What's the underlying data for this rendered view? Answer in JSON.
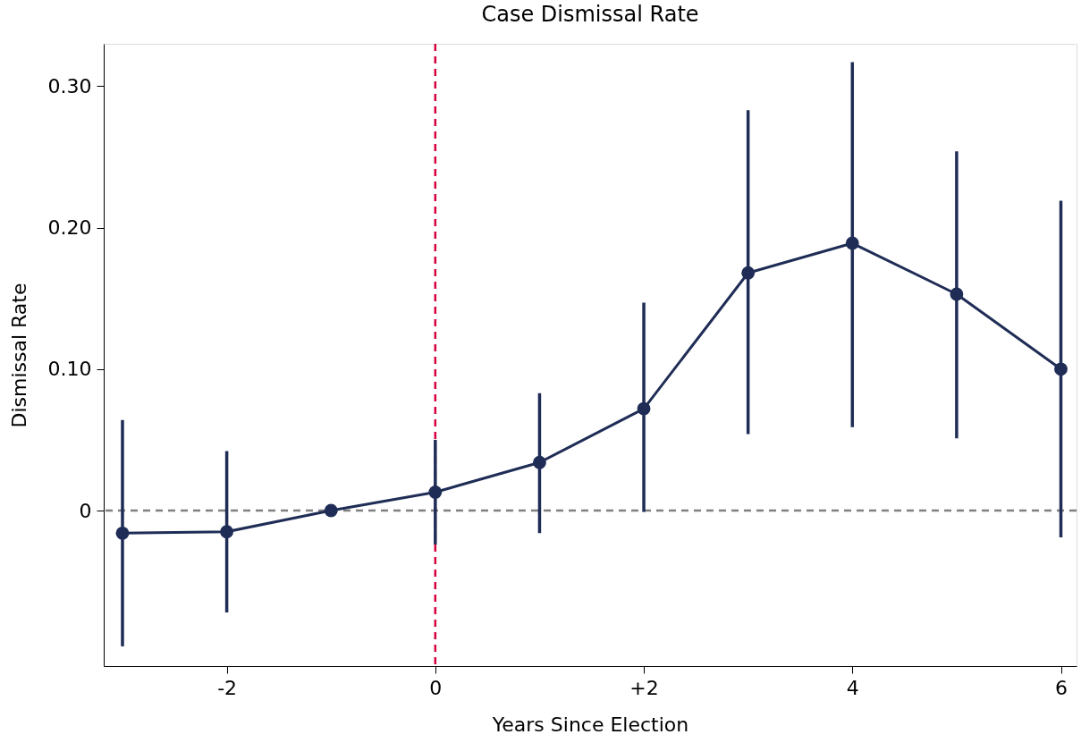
{
  "chart_data": {
    "type": "line",
    "title": "Case Dismissal Rate",
    "xlabel": "Years Since Election",
    "ylabel": "Dismissal Rate",
    "x": [
      -3,
      -2,
      -1,
      0,
      1,
      2,
      3,
      4,
      5,
      6
    ],
    "series": [
      {
        "color": "#1f2d56",
        "values": [
          -0.016,
          -0.015,
          0,
          0.013,
          0.034,
          0.072,
          0.168,
          0.189,
          0.153,
          0.1
        ],
        "errors": [
          [
            -0.096,
            0.064
          ],
          [
            -0.072,
            0.042
          ],
          null,
          [
            -0.024,
            0.05
          ],
          [
            -0.016,
            0.083
          ],
          [
            -0.001,
            0.147
          ],
          [
            0.054,
            0.283
          ],
          [
            0.059,
            0.317
          ],
          [
            0.051,
            0.254
          ],
          [
            -0.019,
            0.219
          ]
        ]
      }
    ],
    "marker": "circle",
    "line_style": "solid",
    "xlim": [
      -3.18,
      6.15
    ],
    "ylim": [
      -0.11,
      0.33
    ],
    "xticks": [
      -2,
      0,
      {
        "value": 2,
        "label": "+2"
      },
      4,
      6
    ],
    "yticks": [
      0,
      {
        "value": 0.1,
        "label": "0.10"
      },
      {
        "value": 0.2,
        "label": "0.20"
      },
      {
        "value": 0.3,
        "label": "0.30"
      }
    ],
    "ref_lines": [
      {
        "axis": "y",
        "value": 0,
        "color": "#808080",
        "line_style": "dashed"
      },
      {
        "axis": "x",
        "value": 0,
        "color": "#d6003c",
        "line_style": "dashed"
      }
    ],
    "grid": false
  }
}
